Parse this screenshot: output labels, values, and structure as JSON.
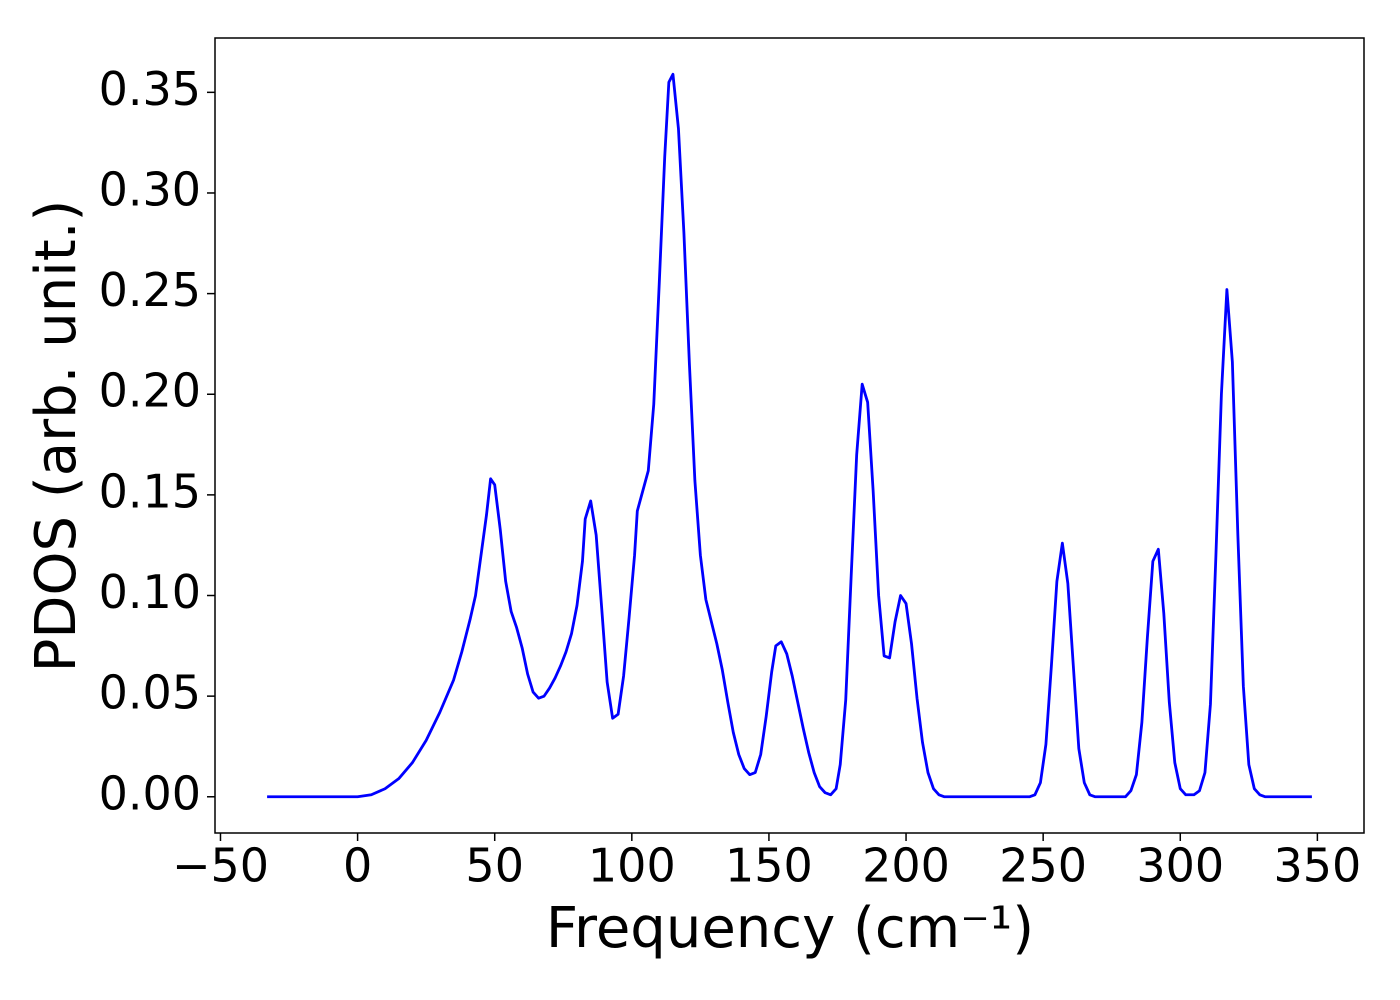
{
  "chart_data": {
    "type": "line",
    "x_label": "Frequency (cm⁻¹)",
    "y_label": "PDOS (arb. unit.)",
    "x": [
      -33,
      0,
      5,
      10,
      15,
      20,
      25,
      30,
      35,
      38,
      41,
      43,
      45,
      47,
      48.5,
      50,
      52,
      54,
      56,
      58,
      60,
      62,
      64,
      66,
      68,
      70,
      72,
      74,
      76,
      78,
      80,
      82,
      83,
      85,
      87,
      89,
      91,
      93,
      95,
      97,
      99,
      101,
      102,
      104,
      106,
      108,
      110,
      112,
      113.5,
      115,
      117,
      119,
      121,
      123,
      125,
      127,
      129,
      131,
      133,
      135,
      137,
      139,
      141,
      143,
      145,
      147,
      149,
      151,
      152.5,
      154.5,
      156.5,
      158.5,
      160.5,
      162.5,
      164.5,
      166.5,
      168.5,
      170.5,
      172.5,
      174.5,
      176,
      178,
      180,
      182,
      184,
      186,
      188,
      190,
      192,
      194,
      196,
      198,
      200,
      202,
      204,
      206,
      208,
      210,
      212,
      214,
      245,
      247,
      249,
      251,
      253,
      255,
      257,
      259,
      261,
      263,
      265,
      267,
      269,
      280,
      282,
      284,
      286,
      288,
      290,
      292,
      294,
      296,
      298,
      300,
      302,
      305,
      307,
      309,
      311,
      313,
      315,
      317,
      319,
      321,
      323,
      325,
      327,
      329,
      331,
      348
    ],
    "series": [
      {
        "name": "PDOS",
        "color": "#0000ff",
        "values": [
          0,
          0,
          0.001,
          0.004,
          0.009,
          0.017,
          0.028,
          0.042,
          0.058,
          0.072,
          0.088,
          0.1,
          0.12,
          0.14,
          0.158,
          0.155,
          0.133,
          0.107,
          0.092,
          0.084,
          0.074,
          0.061,
          0.052,
          0.049,
          0.05,
          0.054,
          0.059,
          0.065,
          0.072,
          0.081,
          0.095,
          0.117,
          0.138,
          0.147,
          0.13,
          0.094,
          0.057,
          0.039,
          0.041,
          0.06,
          0.089,
          0.12,
          0.142,
          0.152,
          0.162,
          0.195,
          0.255,
          0.318,
          0.355,
          0.359,
          0.332,
          0.28,
          0.215,
          0.157,
          0.12,
          0.098,
          0.087,
          0.076,
          0.063,
          0.047,
          0.032,
          0.021,
          0.014,
          0.011,
          0.012,
          0.021,
          0.04,
          0.062,
          0.075,
          0.077,
          0.071,
          0.06,
          0.047,
          0.034,
          0.022,
          0.012,
          0.005,
          0.002,
          0.001,
          0.004,
          0.016,
          0.048,
          0.11,
          0.17,
          0.205,
          0.196,
          0.152,
          0.1,
          0.07,
          0.069,
          0.087,
          0.1,
          0.096,
          0.076,
          0.049,
          0.027,
          0.012,
          0.004,
          0.001,
          0,
          0,
          0.001,
          0.007,
          0.026,
          0.065,
          0.107,
          0.126,
          0.106,
          0.065,
          0.024,
          0.007,
          0.001,
          0,
          0,
          0.003,
          0.011,
          0.037,
          0.079,
          0.117,
          0.123,
          0.091,
          0.047,
          0.017,
          0.004,
          0.001,
          0.001,
          0.003,
          0.012,
          0.046,
          0.12,
          0.2,
          0.252,
          0.216,
          0.13,
          0.055,
          0.016,
          0.004,
          0.001,
          0,
          0
        ]
      }
    ],
    "xlim": [
      -52,
      367
    ],
    "ylim": [
      -0.018,
      0.377
    ],
    "xticks": [
      {
        "value": -50,
        "label": "−50"
      },
      0,
      50,
      100,
      150,
      200,
      250,
      300,
      350
    ],
    "yticks": [
      {
        "value": 0,
        "label": "0.00"
      },
      {
        "value": 0.05,
        "label": "0.05"
      },
      {
        "value": 0.1,
        "label": "0.10"
      },
      {
        "value": 0.15,
        "label": "0.15"
      },
      {
        "value": 0.2,
        "label": "0.20"
      },
      {
        "value": 0.25,
        "label": "0.25"
      },
      {
        "value": 0.3,
        "label": "0.30"
      },
      {
        "value": 0.35,
        "label": "0.35"
      }
    ],
    "grid": false
  }
}
